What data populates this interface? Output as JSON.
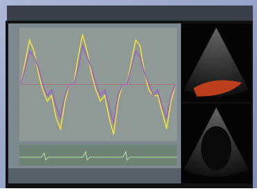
{
  "chart_data": {
    "type": "line",
    "x": [
      0,
      1,
      2,
      3,
      4,
      5,
      6,
      7,
      8,
      9,
      10,
      11,
      12,
      13,
      14,
      15,
      16,
      17,
      18,
      19,
      20,
      21,
      22,
      23,
      24,
      25,
      26,
      27,
      28,
      29,
      30,
      31,
      32,
      33,
      34,
      35
    ],
    "xlim": [
      0,
      35
    ],
    "ylim": [
      -10,
      10
    ],
    "grid": true,
    "series": [
      {
        "color": "#f2e23a",
        "values": [
          0,
          4,
          8,
          6,
          2,
          -1,
          -3,
          -2,
          -6,
          -8,
          -3,
          0,
          0,
          5,
          9,
          6,
          2,
          -1,
          -3,
          -2,
          -6,
          -9,
          -3,
          0,
          0,
          4,
          8,
          7,
          2,
          -1,
          -2,
          -2,
          -5,
          -8,
          -3,
          0
        ]
      },
      {
        "color": "#9a5fc4",
        "values": [
          0,
          3,
          6,
          5,
          3,
          0,
          -2,
          -1,
          -4,
          -6,
          -2,
          0,
          0,
          3,
          7,
          5,
          3,
          0,
          -2,
          -1,
          -4,
          -7,
          -2,
          0,
          0,
          3,
          6,
          5,
          2,
          0,
          -2,
          -1,
          -4,
          -6,
          -2,
          0
        ]
      }
    ]
  }
}
